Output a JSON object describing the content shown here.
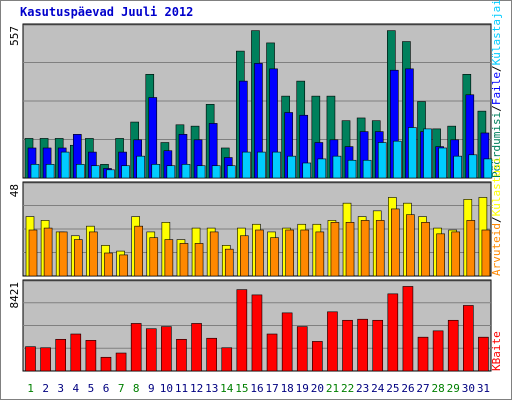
{
  "chart_data": {
    "type": "bar",
    "title": "Kasutuspäevad Juuli 2012",
    "categories": [
      "1",
      "2",
      "3",
      "4",
      "5",
      "6",
      "7",
      "8",
      "9",
      "10",
      "11",
      "12",
      "13",
      "14",
      "15",
      "16",
      "17",
      "18",
      "19",
      "20",
      "21",
      "22",
      "23",
      "24",
      "25",
      "26",
      "27",
      "28",
      "29",
      "30",
      "31"
    ],
    "weekend_days": [
      "1",
      "7",
      "8",
      "14",
      "15",
      "21",
      "22",
      "28",
      "29"
    ],
    "panels": [
      {
        "id": "top",
        "ymax_label": "557",
        "ymax": 557,
        "legend": [
          {
            "name": "Pöördumisi",
            "color": "#00805c"
          },
          {
            "name": "/",
            "color": "#000000"
          },
          {
            "name": "Faile",
            "color": "#0000ff"
          },
          {
            "name": "/",
            "color": "#000000"
          },
          {
            "name": "Külastajaid",
            "color": "#00ccff"
          }
        ],
        "series": [
          {
            "name": "Pöördumisi",
            "color": "#00805c",
            "values": [
              145,
              145,
              145,
              120,
              145,
              50,
              145,
              205,
              380,
              130,
              195,
              190,
              270,
              110,
              465,
              540,
              495,
              300,
              355,
              300,
              300,
              210,
              220,
              210,
              540,
              500,
              280,
              180,
              190,
              380,
              245
            ]
          },
          {
            "name": "Faile",
            "color": "#0000ff",
            "values": [
              110,
              110,
              110,
              160,
              95,
              35,
              95,
              140,
              295,
              100,
              160,
              140,
              200,
              75,
              355,
              420,
              400,
              240,
              230,
              130,
              140,
              115,
              170,
              170,
              395,
              400,
              170,
              115,
              140,
              305,
              165
            ]
          },
          {
            "name": "Külastajaid",
            "color": "#00ccff",
            "values": [
              50,
              50,
              95,
              50,
              45,
              30,
              45,
              80,
              50,
              45,
              50,
              45,
              45,
              45,
              95,
              95,
              95,
              80,
              55,
              70,
              80,
              65,
              65,
              130,
              135,
              185,
              180,
              110,
              80,
              85,
              70
            ]
          }
        ]
      },
      {
        "id": "middle",
        "ymax_label": "48",
        "ymax": 48,
        "legend": [
          {
            "name": "Arvuteid",
            "color": "#ff8800"
          },
          {
            "name": "/",
            "color": "#000000"
          },
          {
            "name": "Külastusi",
            "color": "#ffff00"
          }
        ],
        "series": [
          {
            "name": "Külastusi",
            "color": "#ffff00",
            "values": [
              31,
              29,
              23,
              21,
              26,
              16,
              13,
              31,
              23,
              28,
              19,
              25,
              25,
              16,
              25,
              27,
              23,
              25,
              27,
              27,
              29,
              38,
              31,
              34,
              41,
              38,
              31,
              25,
              24,
              40,
              41
            ]
          },
          {
            "name": "Arvuteid",
            "color": "#ff8800",
            "values": [
              24,
              25,
              23,
              19,
              23,
              12,
              11,
              26,
              20,
              19,
              17,
              17,
              23,
              14,
              21,
              24,
              20,
              24,
              24,
              23,
              28,
              28,
              29,
              29,
              35,
              32,
              28,
              22,
              23,
              29,
              24
            ]
          }
        ]
      },
      {
        "id": "bottom",
        "ymax_label": "8421",
        "ymax": 8421,
        "legend": [
          {
            "name": "KBaite",
            "color": "#ff0000"
          }
        ],
        "series": [
          {
            "name": "KBaite",
            "color": "#ff0000",
            "values": [
              2300,
              2200,
              3000,
              3500,
              2900,
              1300,
              1700,
              4500,
              4000,
              4200,
              3000,
              4500,
              3100,
              2200,
              7700,
              7200,
              3500,
              5500,
              4200,
              2800,
              5600,
              4800,
              4900,
              4800,
              7300,
              8000,
              3200,
              3800,
              4800,
              6200,
              3200
            ]
          }
        ]
      }
    ]
  }
}
